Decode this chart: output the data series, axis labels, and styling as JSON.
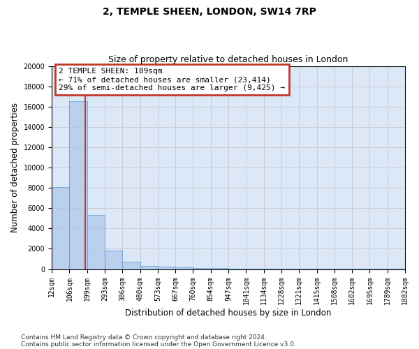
{
  "title_line1": "2, TEMPLE SHEEN, LONDON, SW14 7RP",
  "title_line2": "Size of property relative to detached houses in London",
  "xlabel": "Distribution of detached houses by size in London",
  "ylabel": "Number of detached properties",
  "bin_edges": [
    12,
    106,
    199,
    293,
    386,
    480,
    573,
    667,
    760,
    854,
    947,
    1041,
    1134,
    1228,
    1321,
    1415,
    1508,
    1602,
    1695,
    1789,
    1882
  ],
  "bar_heights": [
    8100,
    16500,
    5300,
    1800,
    700,
    350,
    250,
    150,
    100,
    100,
    75,
    75,
    50,
    50,
    50,
    25,
    25,
    25,
    25,
    25
  ],
  "bar_color": "#aec6e8",
  "bar_edge_color": "#5a9fd4",
  "bar_alpha": 0.7,
  "property_size": 189,
  "vline_color": "#c0392b",
  "annotation_text": "2 TEMPLE SHEEN: 189sqm\n← 71% of detached houses are smaller (23,414)\n29% of semi-detached houses are larger (9,425) →",
  "annotation_box_color": "#c0392b",
  "ylim": [
    0,
    20000
  ],
  "yticks": [
    0,
    2000,
    4000,
    6000,
    8000,
    10000,
    12000,
    14000,
    16000,
    18000,
    20000
  ],
  "xtick_labels": [
    "12sqm",
    "106sqm",
    "199sqm",
    "293sqm",
    "386sqm",
    "480sqm",
    "573sqm",
    "667sqm",
    "760sqm",
    "854sqm",
    "947sqm",
    "1041sqm",
    "1134sqm",
    "1228sqm",
    "1321sqm",
    "1415sqm",
    "1508sqm",
    "1602sqm",
    "1695sqm",
    "1789sqm",
    "1882sqm"
  ],
  "grid_color": "#cccccc",
  "background_color": "#dce8f8",
  "footer_line1": "Contains HM Land Registry data © Crown copyright and database right 2024.",
  "footer_line2": "Contains public sector information licensed under the Open Government Licence v3.0.",
  "title_fontsize": 10,
  "subtitle_fontsize": 9,
  "axis_label_fontsize": 8.5,
  "tick_fontsize": 7,
  "annotation_fontsize": 8,
  "footer_fontsize": 6.5
}
